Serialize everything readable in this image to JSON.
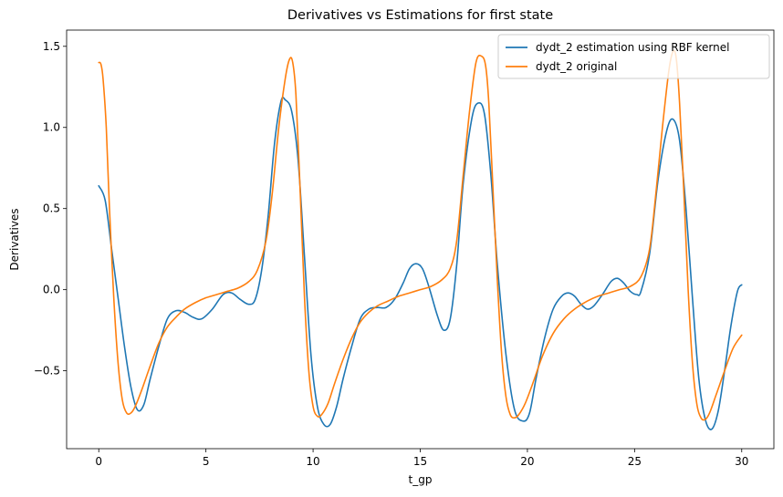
{
  "chart_data": {
    "type": "line",
    "title": "Derivatives vs Estimations for first state",
    "xlabel": "t_gp",
    "ylabel": "Derivatives",
    "xlim": [
      -1.5,
      31.5
    ],
    "ylim": [
      -0.98,
      1.6
    ],
    "xticks": [
      0,
      5,
      10,
      15,
      20,
      25,
      30
    ],
    "yticks": [
      -0.5,
      0.0,
      0.5,
      1.0,
      1.5
    ],
    "xtick_labels": [
      "0",
      "5",
      "10",
      "15",
      "20",
      "25",
      "30"
    ],
    "ytick_labels": [
      "−0.5",
      "0.0",
      "0.5",
      "1.0",
      "1.5"
    ],
    "legend_position": "top-right",
    "grid": false,
    "series": [
      {
        "name": "dydt_2 estimation using RBF kernel",
        "color": "#1f77b4",
        "points": [
          [
            0.0,
            0.64
          ],
          [
            0.3,
            0.55
          ],
          [
            0.6,
            0.25
          ],
          [
            0.9,
            -0.05
          ],
          [
            1.2,
            -0.35
          ],
          [
            1.5,
            -0.6
          ],
          [
            1.8,
            -0.74
          ],
          [
            2.1,
            -0.71
          ],
          [
            2.4,
            -0.55
          ],
          [
            2.8,
            -0.35
          ],
          [
            3.2,
            -0.18
          ],
          [
            3.6,
            -0.13
          ],
          [
            4.0,
            -0.14
          ],
          [
            4.4,
            -0.17
          ],
          [
            4.8,
            -0.18
          ],
          [
            5.3,
            -0.12
          ],
          [
            5.8,
            -0.03
          ],
          [
            6.2,
            -0.02
          ],
          [
            6.6,
            -0.06
          ],
          [
            7.0,
            -0.09
          ],
          [
            7.3,
            -0.06
          ],
          [
            7.6,
            0.12
          ],
          [
            7.9,
            0.45
          ],
          [
            8.2,
            0.9
          ],
          [
            8.5,
            1.16
          ],
          [
            8.7,
            1.17
          ],
          [
            9.0,
            1.1
          ],
          [
            9.3,
            0.8
          ],
          [
            9.6,
            0.2
          ],
          [
            9.9,
            -0.4
          ],
          [
            10.2,
            -0.72
          ],
          [
            10.5,
            -0.83
          ],
          [
            10.8,
            -0.83
          ],
          [
            11.1,
            -0.72
          ],
          [
            11.4,
            -0.55
          ],
          [
            11.8,
            -0.35
          ],
          [
            12.2,
            -0.18
          ],
          [
            12.6,
            -0.12
          ],
          [
            13.0,
            -0.11
          ],
          [
            13.4,
            -0.11
          ],
          [
            13.8,
            -0.06
          ],
          [
            14.2,
            0.04
          ],
          [
            14.5,
            0.13
          ],
          [
            14.8,
            0.16
          ],
          [
            15.1,
            0.13
          ],
          [
            15.4,
            0.02
          ],
          [
            15.8,
            -0.16
          ],
          [
            16.1,
            -0.25
          ],
          [
            16.4,
            -0.18
          ],
          [
            16.7,
            0.15
          ],
          [
            17.0,
            0.65
          ],
          [
            17.4,
            1.05
          ],
          [
            17.7,
            1.15
          ],
          [
            18.0,
            1.08
          ],
          [
            18.3,
            0.7
          ],
          [
            18.6,
            0.15
          ],
          [
            19.0,
            -0.4
          ],
          [
            19.4,
            -0.74
          ],
          [
            19.8,
            -0.81
          ],
          [
            20.1,
            -0.76
          ],
          [
            20.4,
            -0.55
          ],
          [
            20.8,
            -0.3
          ],
          [
            21.2,
            -0.12
          ],
          [
            21.6,
            -0.04
          ],
          [
            21.9,
            -0.02
          ],
          [
            22.2,
            -0.04
          ],
          [
            22.5,
            -0.09
          ],
          [
            22.8,
            -0.12
          ],
          [
            23.1,
            -0.1
          ],
          [
            23.5,
            -0.03
          ],
          [
            23.9,
            0.05
          ],
          [
            24.2,
            0.07
          ],
          [
            24.5,
            0.04
          ],
          [
            24.8,
            -0.01
          ],
          [
            25.1,
            -0.03
          ],
          [
            25.3,
            -0.01
          ],
          [
            25.7,
            0.22
          ],
          [
            26.1,
            0.68
          ],
          [
            26.5,
            0.98
          ],
          [
            26.8,
            1.05
          ],
          [
            27.1,
            0.92
          ],
          [
            27.4,
            0.5
          ],
          [
            27.7,
            -0.05
          ],
          [
            28.0,
            -0.55
          ],
          [
            28.3,
            -0.8
          ],
          [
            28.6,
            -0.86
          ],
          [
            28.9,
            -0.75
          ],
          [
            29.2,
            -0.5
          ],
          [
            29.5,
            -0.22
          ],
          [
            29.8,
            -0.01
          ],
          [
            30.0,
            0.03
          ]
        ]
      },
      {
        "name": "dydt_2 original",
        "color": "#ff7f0e",
        "points": [
          [
            0.0,
            1.4
          ],
          [
            0.1,
            1.39
          ],
          [
            0.2,
            1.3
          ],
          [
            0.35,
            1.0
          ],
          [
            0.5,
            0.5
          ],
          [
            0.7,
            -0.05
          ],
          [
            0.9,
            -0.45
          ],
          [
            1.1,
            -0.68
          ],
          [
            1.3,
            -0.76
          ],
          [
            1.5,
            -0.76
          ],
          [
            1.7,
            -0.72
          ],
          [
            2.0,
            -0.62
          ],
          [
            2.4,
            -0.47
          ],
          [
            2.8,
            -0.33
          ],
          [
            3.2,
            -0.23
          ],
          [
            3.6,
            -0.17
          ],
          [
            4.0,
            -0.12
          ],
          [
            4.5,
            -0.08
          ],
          [
            5.0,
            -0.05
          ],
          [
            5.5,
            -0.03
          ],
          [
            6.0,
            -0.01
          ],
          [
            6.5,
            0.01
          ],
          [
            7.0,
            0.05
          ],
          [
            7.4,
            0.12
          ],
          [
            7.8,
            0.3
          ],
          [
            8.1,
            0.6
          ],
          [
            8.4,
            1.0
          ],
          [
            8.7,
            1.3
          ],
          [
            8.9,
            1.42
          ],
          [
            9.05,
            1.4
          ],
          [
            9.2,
            1.2
          ],
          [
            9.4,
            0.6
          ],
          [
            9.6,
            -0.05
          ],
          [
            9.8,
            -0.5
          ],
          [
            10.0,
            -0.72
          ],
          [
            10.2,
            -0.78
          ],
          [
            10.4,
            -0.77
          ],
          [
            10.7,
            -0.7
          ],
          [
            11.0,
            -0.58
          ],
          [
            11.4,
            -0.43
          ],
          [
            11.8,
            -0.3
          ],
          [
            12.2,
            -0.2
          ],
          [
            12.6,
            -0.14
          ],
          [
            13.0,
            -0.1
          ],
          [
            13.5,
            -0.07
          ],
          [
            14.0,
            -0.04
          ],
          [
            14.5,
            -0.02
          ],
          [
            15.0,
            0.0
          ],
          [
            15.5,
            0.02
          ],
          [
            16.0,
            0.06
          ],
          [
            16.4,
            0.13
          ],
          [
            16.7,
            0.3
          ],
          [
            17.0,
            0.7
          ],
          [
            17.3,
            1.1
          ],
          [
            17.6,
            1.4
          ],
          [
            17.85,
            1.44
          ],
          [
            18.05,
            1.38
          ],
          [
            18.2,
            1.15
          ],
          [
            18.4,
            0.6
          ],
          [
            18.6,
            0.05
          ],
          [
            18.8,
            -0.4
          ],
          [
            19.0,
            -0.66
          ],
          [
            19.2,
            -0.77
          ],
          [
            19.4,
            -0.79
          ],
          [
            19.6,
            -0.77
          ],
          [
            19.9,
            -0.7
          ],
          [
            20.3,
            -0.56
          ],
          [
            20.7,
            -0.41
          ],
          [
            21.2,
            -0.27
          ],
          [
            21.7,
            -0.18
          ],
          [
            22.2,
            -0.12
          ],
          [
            22.8,
            -0.07
          ],
          [
            23.3,
            -0.04
          ],
          [
            23.8,
            -0.02
          ],
          [
            24.3,
            0.0
          ],
          [
            24.8,
            0.02
          ],
          [
            25.3,
            0.08
          ],
          [
            25.7,
            0.25
          ],
          [
            26.0,
            0.6
          ],
          [
            26.3,
            1.0
          ],
          [
            26.6,
            1.35
          ],
          [
            26.8,
            1.47
          ],
          [
            26.95,
            1.42
          ],
          [
            27.1,
            1.15
          ],
          [
            27.3,
            0.6
          ],
          [
            27.5,
            0.0
          ],
          [
            27.7,
            -0.45
          ],
          [
            27.9,
            -0.7
          ],
          [
            28.1,
            -0.79
          ],
          [
            28.3,
            -0.8
          ],
          [
            28.5,
            -0.76
          ],
          [
            28.8,
            -0.65
          ],
          [
            29.2,
            -0.5
          ],
          [
            29.6,
            -0.36
          ],
          [
            30.0,
            -0.28
          ]
        ]
      }
    ]
  }
}
